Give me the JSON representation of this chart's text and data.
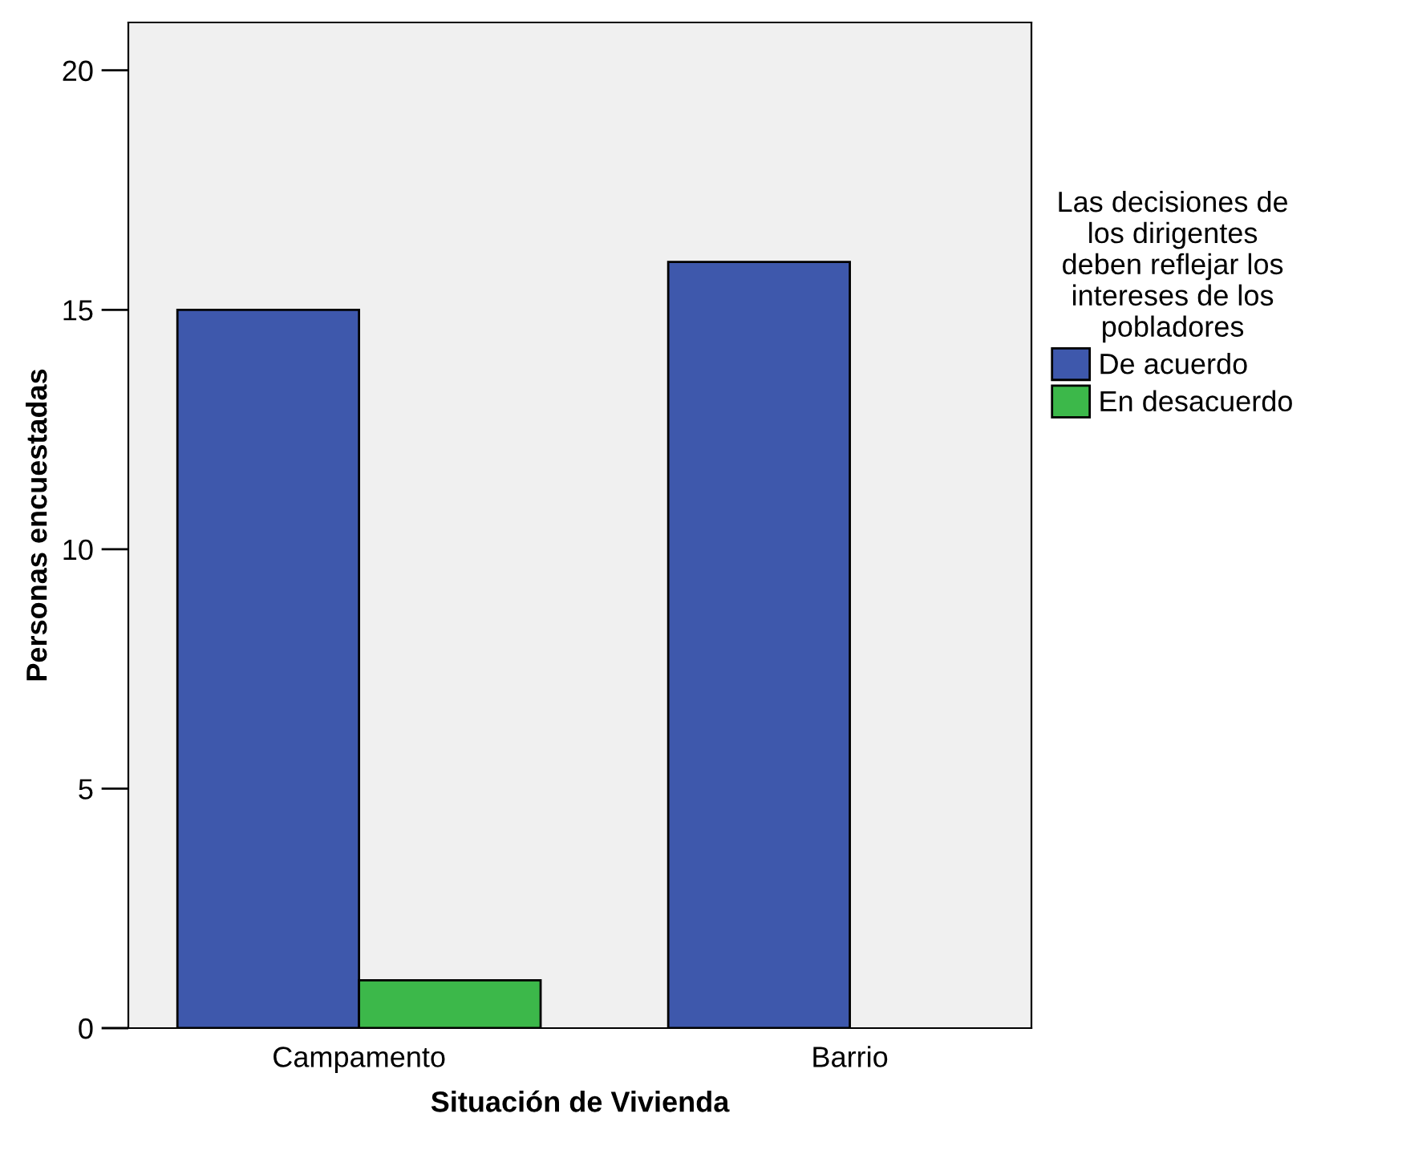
{
  "chart_data": {
    "type": "bar",
    "xlabel": "Situación de Vivienda",
    "ylabel": "Personas encuestadas",
    "legend_title": "Las decisiones de\nlos dirigentes\ndeben reflejar los\nintereses de los\npobladores",
    "categories": [
      "Campamento",
      "Barrio"
    ],
    "series": [
      {
        "name": "De acuerdo",
        "color": "#3e58ac",
        "values": [
          15,
          16
        ]
      },
      {
        "name": "En desacuerdo",
        "color": "#3cb84a",
        "values": [
          1,
          null
        ]
      }
    ],
    "ylim": [
      0,
      21
    ],
    "yticks": [
      0,
      5,
      10,
      15,
      20
    ],
    "grid": false,
    "legend": "right"
  }
}
